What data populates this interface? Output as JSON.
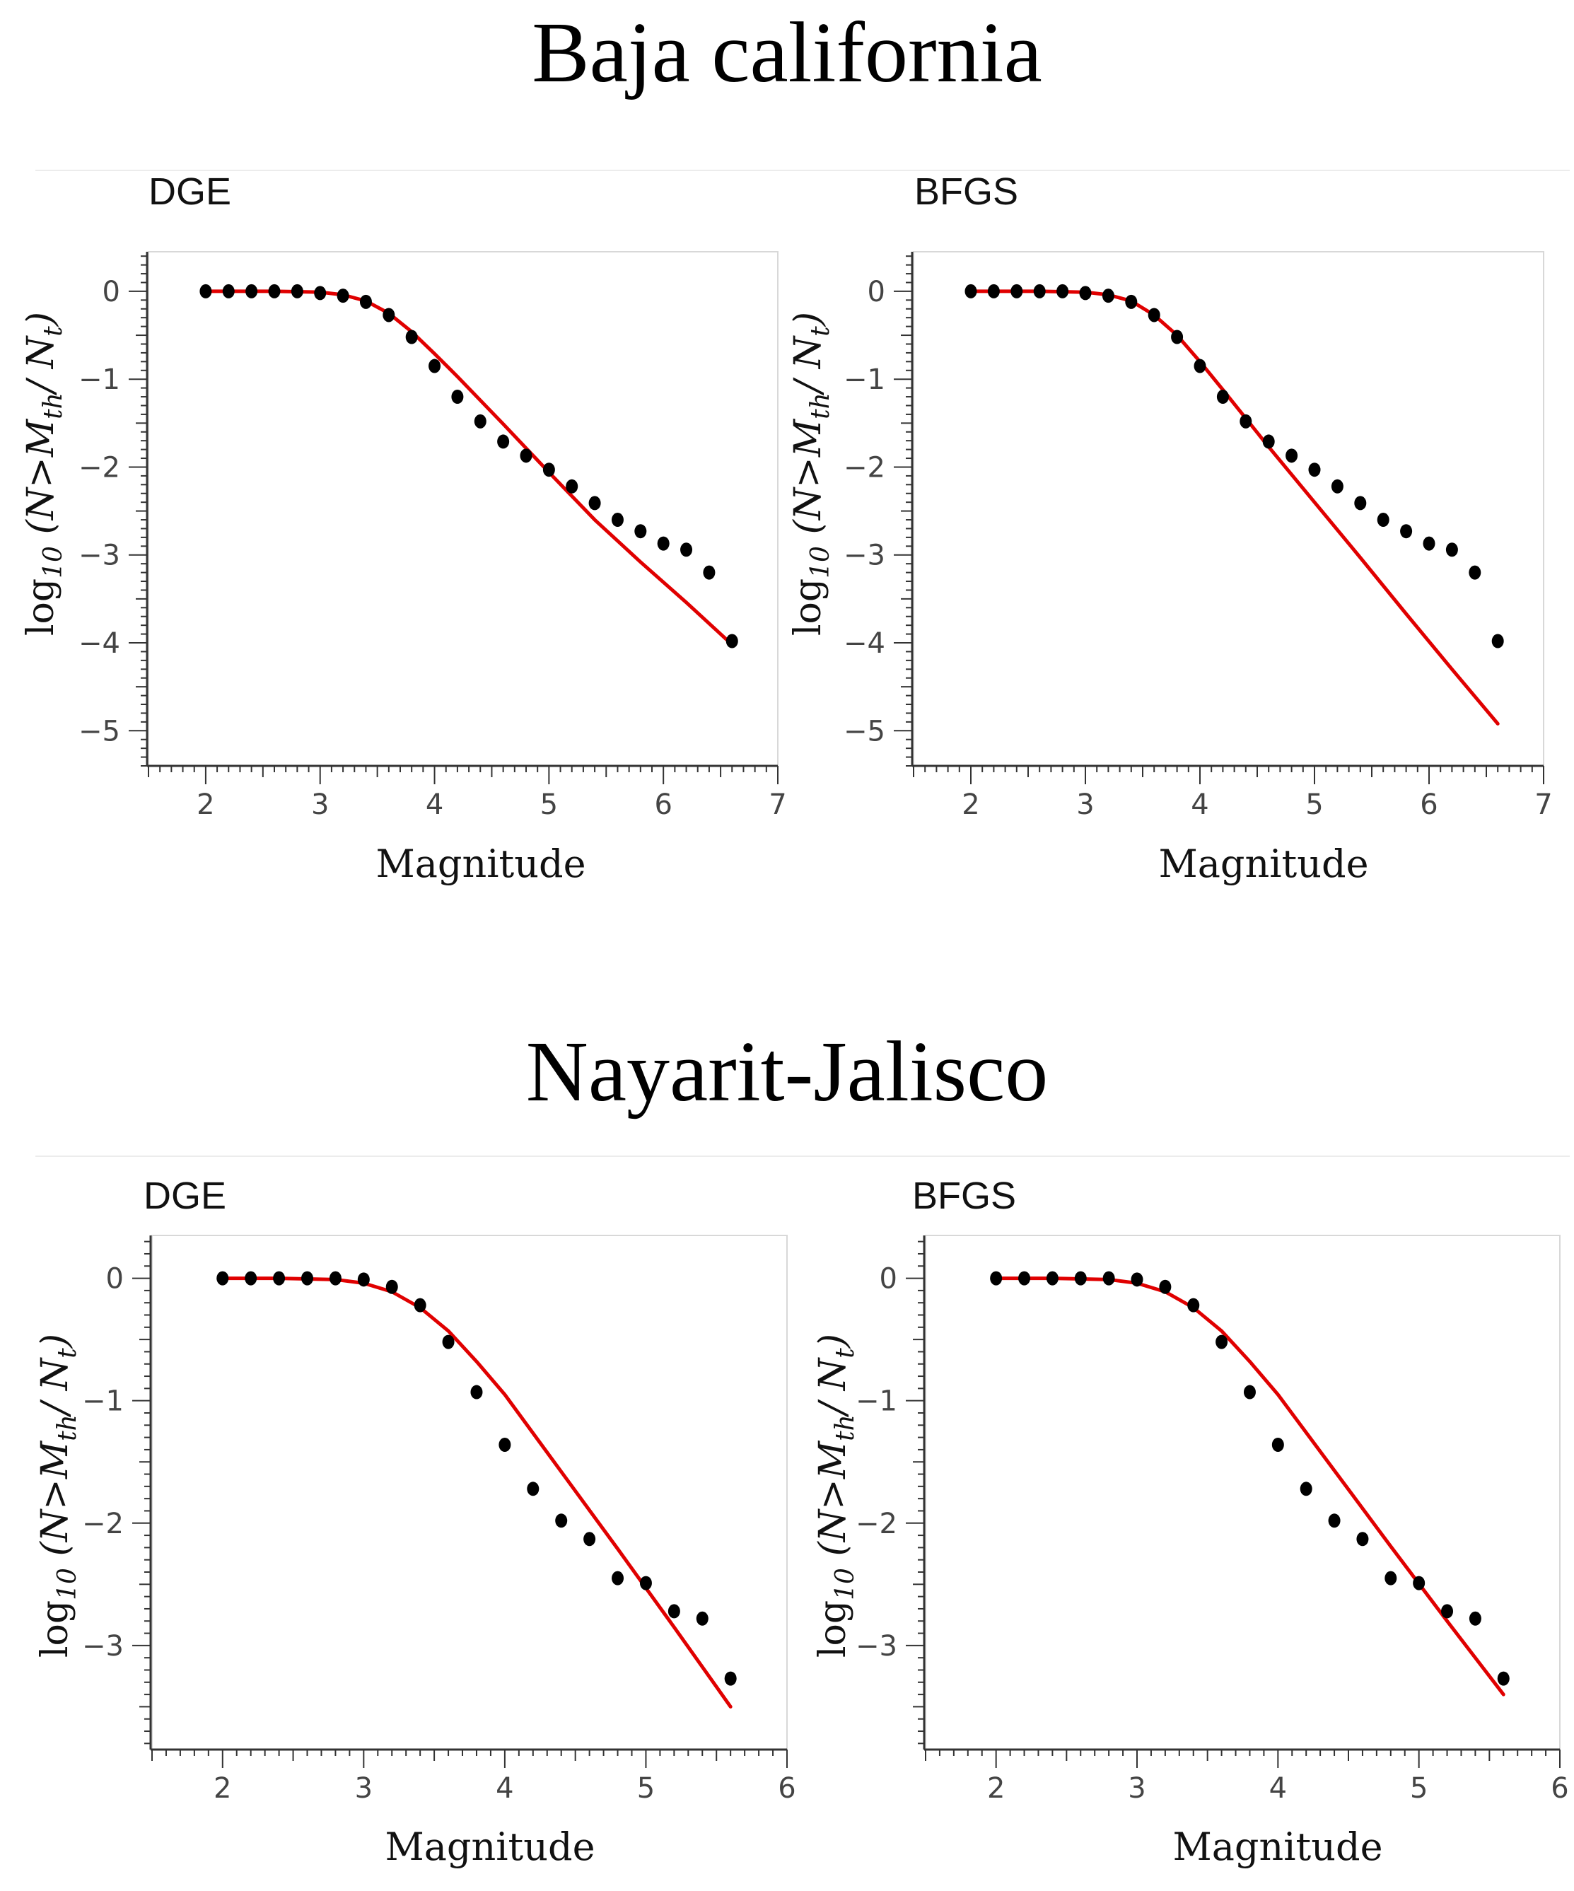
{
  "figure": {
    "sections": [
      {
        "title": "Baja california"
      },
      {
        "title": "Nayarit-Jalisco"
      }
    ]
  },
  "y_axis_label": {
    "prefix": "log",
    "sub": "10",
    "open": " (N>M",
    "sub2": "th",
    "mid": "/ N",
    "sub3": "t",
    "close": ")"
  },
  "chart_data": [
    {
      "type": "scatter",
      "section": "Baja california",
      "panel_label": "DGE",
      "xlabel": "Magnitude",
      "xlim": [
        1.5,
        7
      ],
      "ylim": [
        -5.4,
        0.45
      ],
      "xticks": [
        2,
        3,
        4,
        5,
        6,
        7
      ],
      "yticks": [
        0,
        -1,
        -2,
        -3,
        -4,
        -5
      ],
      "series": [
        {
          "kind": "points",
          "color": "#000000",
          "x": [
            2.0,
            2.2,
            2.4,
            2.6,
            2.8,
            3.0,
            3.2,
            3.4,
            3.6,
            3.8,
            4.0,
            4.2,
            4.4,
            4.6,
            4.8,
            5.0,
            5.2,
            5.4,
            5.6,
            5.8,
            6.0,
            6.2,
            6.4,
            6.6
          ],
          "y": [
            0,
            0,
            0,
            0,
            0,
            -0.02,
            -0.05,
            -0.12,
            -0.27,
            -0.52,
            -0.85,
            -1.2,
            -1.48,
            -1.71,
            -1.87,
            -2.03,
            -2.22,
            -2.41,
            -2.6,
            -2.73,
            -2.87,
            -2.94,
            -3.2,
            -3.98
          ]
        },
        {
          "kind": "line",
          "color": "#e00000",
          "x": [
            2.0,
            2.6,
            3.0,
            3.2,
            3.4,
            3.6,
            3.8,
            4.0,
            4.2,
            4.6,
            5.0,
            5.4,
            5.8,
            6.2,
            6.6
          ],
          "y": [
            0,
            0,
            -0.01,
            -0.04,
            -0.11,
            -0.25,
            -0.46,
            -0.71,
            -0.97,
            -1.51,
            -2.06,
            -2.6,
            -3.08,
            -3.54,
            -4.02
          ]
        }
      ]
    },
    {
      "type": "scatter",
      "section": "Baja california",
      "panel_label": "BFGS",
      "xlabel": "Magnitude",
      "xlim": [
        1.5,
        7
      ],
      "ylim": [
        -5.4,
        0.45
      ],
      "xticks": [
        2,
        3,
        4,
        5,
        6,
        7
      ],
      "yticks": [
        0,
        -1,
        -2,
        -3,
        -4,
        -5
      ],
      "series": [
        {
          "kind": "points",
          "color": "#000000",
          "x": [
            2.0,
            2.2,
            2.4,
            2.6,
            2.8,
            3.0,
            3.2,
            3.4,
            3.6,
            3.8,
            4.0,
            4.2,
            4.4,
            4.6,
            4.8,
            5.0,
            5.2,
            5.4,
            5.6,
            5.8,
            6.0,
            6.2,
            6.4,
            6.6
          ],
          "y": [
            0,
            0,
            0,
            0,
            0,
            -0.02,
            -0.05,
            -0.12,
            -0.27,
            -0.52,
            -0.85,
            -1.2,
            -1.48,
            -1.71,
            -1.87,
            -2.03,
            -2.22,
            -2.41,
            -2.6,
            -2.73,
            -2.87,
            -2.94,
            -3.2,
            -3.98
          ]
        },
        {
          "kind": "line",
          "color": "#e00000",
          "x": [
            2.0,
            2.6,
            3.0,
            3.2,
            3.4,
            3.6,
            3.8,
            4.0,
            4.2,
            4.6,
            5.0,
            5.4,
            5.8,
            6.2,
            6.6
          ],
          "y": [
            0,
            0,
            -0.01,
            -0.04,
            -0.11,
            -0.27,
            -0.5,
            -0.8,
            -1.12,
            -1.77,
            -2.4,
            -3.03,
            -3.67,
            -4.3,
            -4.92
          ]
        }
      ]
    },
    {
      "type": "scatter",
      "section": "Nayarit-Jalisco",
      "panel_label": "DGE",
      "xlabel": "Magnitude",
      "xlim": [
        1.5,
        6
      ],
      "ylim": [
        -3.85,
        0.35
      ],
      "xticks": [
        2,
        3,
        4,
        5,
        6
      ],
      "yticks": [
        0,
        -1,
        -2,
        -3
      ],
      "series": [
        {
          "kind": "points",
          "color": "#000000",
          "x": [
            2.0,
            2.2,
            2.4,
            2.6,
            2.8,
            3.0,
            3.2,
            3.4,
            3.6,
            3.8,
            4.0,
            4.2,
            4.4,
            4.6,
            4.8,
            5.0,
            5.2,
            5.4,
            5.6
          ],
          "y": [
            0,
            0,
            0,
            0,
            0,
            -0.01,
            -0.07,
            -0.22,
            -0.52,
            -0.93,
            -1.36,
            -1.72,
            -1.98,
            -2.13,
            -2.45,
            -2.49,
            -2.72,
            -2.78,
            -3.27
          ]
        },
        {
          "kind": "line",
          "color": "#e00000",
          "x": [
            2.0,
            2.4,
            2.8,
            3.0,
            3.2,
            3.4,
            3.6,
            3.8,
            4.0,
            4.4,
            4.8,
            5.2,
            5.6
          ],
          "y": [
            0,
            0,
            -0.01,
            -0.04,
            -0.11,
            -0.24,
            -0.43,
            -0.68,
            -0.95,
            -1.58,
            -2.21,
            -2.85,
            -3.5
          ]
        }
      ]
    },
    {
      "type": "scatter",
      "section": "Nayarit-Jalisco",
      "panel_label": "BFGS",
      "xlabel": "Magnitude",
      "xlim": [
        1.5,
        6
      ],
      "ylim": [
        -3.85,
        0.35
      ],
      "xticks": [
        2,
        3,
        4,
        5,
        6
      ],
      "yticks": [
        0,
        -1,
        -2,
        -3
      ],
      "series": [
        {
          "kind": "points",
          "color": "#000000",
          "x": [
            2.0,
            2.2,
            2.4,
            2.6,
            2.8,
            3.0,
            3.2,
            3.4,
            3.6,
            3.8,
            4.0,
            4.2,
            4.4,
            4.6,
            4.8,
            5.0,
            5.2,
            5.4,
            5.6
          ],
          "y": [
            0,
            0,
            0,
            0,
            0,
            -0.01,
            -0.07,
            -0.22,
            -0.52,
            -0.93,
            -1.36,
            -1.72,
            -1.98,
            -2.13,
            -2.45,
            -2.49,
            -2.72,
            -2.78,
            -3.27
          ]
        },
        {
          "kind": "line",
          "color": "#e00000",
          "x": [
            2.0,
            2.4,
            2.8,
            3.0,
            3.2,
            3.4,
            3.6,
            3.8,
            4.0,
            4.4,
            4.8,
            5.2,
            5.6
          ],
          "y": [
            0,
            0,
            -0.01,
            -0.04,
            -0.11,
            -0.24,
            -0.43,
            -0.68,
            -0.95,
            -1.57,
            -2.19,
            -2.8,
            -3.4
          ]
        }
      ]
    }
  ]
}
